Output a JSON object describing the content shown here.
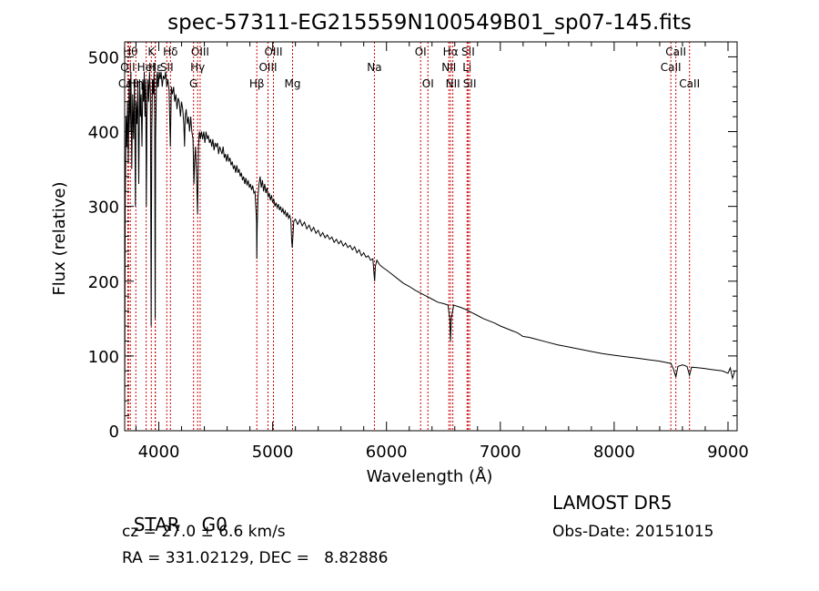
{
  "chart_data": {
    "type": "line",
    "title": "spec-57311-EG215559N100549B01_sp07-145.fits",
    "xlabel": "Wavelength (Å)",
    "ylabel": "Flux (relative)",
    "xlim": [
      3700,
      9080
    ],
    "ylim": [
      0,
      520
    ],
    "xticks": [
      4000,
      5000,
      6000,
      7000,
      8000,
      9000
    ],
    "yticks": [
      0,
      100,
      200,
      300,
      400,
      500
    ],
    "grid": false,
    "series": [
      {
        "values": [
          [
            3700,
            10
          ],
          [
            3705,
            300
          ],
          [
            3712,
            420
          ],
          [
            3718,
            380
          ],
          [
            3725,
            440
          ],
          [
            3732,
            360
          ],
          [
            3740,
            470
          ],
          [
            3748,
            400
          ],
          [
            3755,
            480
          ],
          [
            3762,
            350
          ],
          [
            3770,
            450
          ],
          [
            3778,
            390
          ],
          [
            3786,
            470
          ],
          [
            3794,
            300
          ],
          [
            3800,
            440
          ],
          [
            3808,
            410
          ],
          [
            3816,
            460
          ],
          [
            3824,
            330
          ],
          [
            3832,
            470
          ],
          [
            3838,
            420
          ],
          [
            3845,
            450
          ],
          [
            3852,
            380
          ],
          [
            3860,
            470
          ],
          [
            3866,
            440
          ],
          [
            3872,
            480
          ],
          [
            3878,
            420
          ],
          [
            3885,
            470
          ],
          [
            3890,
            300
          ],
          [
            3896,
            420
          ],
          [
            3904,
            470
          ],
          [
            3910,
            440
          ],
          [
            3918,
            480
          ],
          [
            3926,
            450
          ],
          [
            3933,
            140
          ],
          [
            3938,
            400
          ],
          [
            3945,
            470
          ],
          [
            3952,
            450
          ],
          [
            3958,
            480
          ],
          [
            3964,
            420
          ],
          [
            3968,
            150
          ],
          [
            3972,
            390
          ],
          [
            3980,
            470
          ],
          [
            3988,
            480
          ],
          [
            3996,
            460
          ],
          [
            4004,
            480
          ],
          [
            4012,
            470
          ],
          [
            4020,
            480
          ],
          [
            4030,
            460
          ],
          [
            4040,
            475
          ],
          [
            4050,
            470
          ],
          [
            4060,
            480
          ],
          [
            4070,
            460
          ],
          [
            4080,
            470
          ],
          [
            4090,
            455
          ],
          [
            4101,
            380
          ],
          [
            4110,
            460
          ],
          [
            4120,
            450
          ],
          [
            4130,
            460
          ],
          [
            4140,
            440
          ],
          [
            4150,
            450
          ],
          [
            4160,
            430
          ],
          [
            4170,
            445
          ],
          [
            4180,
            440
          ],
          [
            4190,
            420
          ],
          [
            4200,
            440
          ],
          [
            4210,
            430
          ],
          [
            4220,
            410
          ],
          [
            4226,
            380
          ],
          [
            4232,
            420
          ],
          [
            4240,
            430
          ],
          [
            4250,
            410
          ],
          [
            4260,
            420
          ],
          [
            4270,
            400
          ],
          [
            4280,
            420
          ],
          [
            4290,
            400
          ],
          [
            4300,
            390
          ],
          [
            4308,
            330
          ],
          [
            4315,
            360
          ],
          [
            4322,
            380
          ],
          [
            4330,
            350
          ],
          [
            4340,
            290
          ],
          [
            4348,
            380
          ],
          [
            4356,
            400
          ],
          [
            4365,
            390
          ],
          [
            4375,
            400
          ],
          [
            4385,
            390
          ],
          [
            4395,
            400
          ],
          [
            4405,
            385
          ],
          [
            4415,
            400
          ],
          [
            4425,
            390
          ],
          [
            4435,
            395
          ],
          [
            4445,
            385
          ],
          [
            4455,
            390
          ],
          [
            4465,
            380
          ],
          [
            4475,
            390
          ],
          [
            4485,
            375
          ],
          [
            4495,
            385
          ],
          [
            4505,
            380
          ],
          [
            4515,
            385
          ],
          [
            4525,
            370
          ],
          [
            4535,
            380
          ],
          [
            4545,
            375
          ],
          [
            4555,
            370
          ],
          [
            4565,
            380
          ],
          [
            4575,
            365
          ],
          [
            4585,
            370
          ],
          [
            4595,
            360
          ],
          [
            4605,
            370
          ],
          [
            4615,
            360
          ],
          [
            4625,
            365
          ],
          [
            4635,
            355
          ],
          [
            4645,
            360
          ],
          [
            4655,
            350
          ],
          [
            4665,
            355
          ],
          [
            4675,
            345
          ],
          [
            4685,
            355
          ],
          [
            4695,
            345
          ],
          [
            4705,
            350
          ],
          [
            4715,
            340
          ],
          [
            4725,
            345
          ],
          [
            4735,
            335
          ],
          [
            4745,
            340
          ],
          [
            4755,
            330
          ],
          [
            4765,
            338
          ],
          [
            4775,
            328
          ],
          [
            4785,
            335
          ],
          [
            4795,
            325
          ],
          [
            4805,
            330
          ],
          [
            4815,
            322
          ],
          [
            4825,
            328
          ],
          [
            4835,
            318
          ],
          [
            4845,
            320
          ],
          [
            4852,
            300
          ],
          [
            4858,
            280
          ],
          [
            4861,
            230
          ],
          [
            4864,
            270
          ],
          [
            4870,
            310
          ],
          [
            4880,
            330
          ],
          [
            4890,
            340
          ],
          [
            4900,
            325
          ],
          [
            4910,
            335
          ],
          [
            4920,
            320
          ],
          [
            4930,
            330
          ],
          [
            4940,
            318
          ],
          [
            4950,
            325
          ],
          [
            4960,
            312
          ],
          [
            4970,
            318
          ],
          [
            4980,
            308
          ],
          [
            4990,
            315
          ],
          [
            5000,
            305
          ],
          [
            5010,
            310
          ],
          [
            5020,
            300
          ],
          [
            5030,
            305
          ],
          [
            5040,
            298
          ],
          [
            5050,
            303
          ],
          [
            5060,
            295
          ],
          [
            5070,
            300
          ],
          [
            5080,
            292
          ],
          [
            5090,
            297
          ],
          [
            5100,
            290
          ],
          [
            5110,
            294
          ],
          [
            5120,
            286
          ],
          [
            5130,
            292
          ],
          [
            5140,
            284
          ],
          [
            5150,
            288
          ],
          [
            5160,
            282
          ],
          [
            5167,
            255
          ],
          [
            5172,
            245
          ],
          [
            5178,
            260
          ],
          [
            5185,
            280
          ],
          [
            5200,
            283
          ],
          [
            5220,
            276
          ],
          [
            5240,
            282
          ],
          [
            5260,
            274
          ],
          [
            5280,
            279
          ],
          [
            5300,
            270
          ],
          [
            5320,
            275
          ],
          [
            5340,
            267
          ],
          [
            5360,
            272
          ],
          [
            5380,
            264
          ],
          [
            5400,
            268
          ],
          [
            5420,
            260
          ],
          [
            5440,
            265
          ],
          [
            5460,
            258
          ],
          [
            5480,
            262
          ],
          [
            5500,
            256
          ],
          [
            5520,
            259
          ],
          [
            5540,
            252
          ],
          [
            5560,
            256
          ],
          [
            5580,
            250
          ],
          [
            5600,
            254
          ],
          [
            5620,
            247
          ],
          [
            5640,
            251
          ],
          [
            5660,
            245
          ],
          [
            5680,
            248
          ],
          [
            5700,
            242
          ],
          [
            5720,
            246
          ],
          [
            5740,
            238
          ],
          [
            5760,
            242
          ],
          [
            5780,
            234
          ],
          [
            5800,
            238
          ],
          [
            5820,
            232
          ],
          [
            5840,
            234
          ],
          [
            5860,
            228
          ],
          [
            5880,
            230
          ],
          [
            5890,
            210
          ],
          [
            5896,
            200
          ],
          [
            5902,
            220
          ],
          [
            5915,
            228
          ],
          [
            5940,
            222
          ],
          [
            5970,
            218
          ],
          [
            6000,
            215
          ],
          [
            6050,
            209
          ],
          [
            6100,
            203
          ],
          [
            6150,
            197
          ],
          [
            6200,
            193
          ],
          [
            6250,
            188
          ],
          [
            6300,
            184
          ],
          [
            6350,
            180
          ],
          [
            6400,
            176
          ],
          [
            6450,
            172
          ],
          [
            6500,
            170
          ],
          [
            6540,
            168
          ],
          [
            6556,
            150
          ],
          [
            6563,
            120
          ],
          [
            6570,
            150
          ],
          [
            6590,
            168
          ],
          [
            6650,
            165
          ],
          [
            6700,
            162
          ],
          [
            6750,
            158
          ],
          [
            6800,
            154
          ],
          [
            6850,
            150
          ],
          [
            6900,
            147
          ],
          [
            6950,
            144
          ],
          [
            7000,
            140
          ],
          [
            7050,
            137
          ],
          [
            7100,
            134
          ],
          [
            7150,
            131
          ],
          [
            7200,
            126
          ],
          [
            7250,
            125
          ],
          [
            7300,
            123
          ],
          [
            7400,
            119
          ],
          [
            7500,
            115
          ],
          [
            7600,
            112
          ],
          [
            7700,
            109
          ],
          [
            7800,
            106
          ],
          [
            7900,
            103
          ],
          [
            8000,
            101
          ],
          [
            8100,
            99
          ],
          [
            8200,
            97
          ],
          [
            8300,
            95
          ],
          [
            8400,
            93
          ],
          [
            8498,
            90
          ],
          [
            8520,
            83
          ],
          [
            8542,
            72
          ],
          [
            8560,
            86
          ],
          [
            8600,
            88
          ],
          [
            8640,
            86
          ],
          [
            8662,
            74
          ],
          [
            8680,
            85
          ],
          [
            8750,
            84
          ],
          [
            8800,
            83
          ],
          [
            8850,
            82
          ],
          [
            8900,
            81
          ],
          [
            8950,
            80
          ],
          [
            9000,
            77
          ],
          [
            9020,
            84
          ],
          [
            9040,
            70
          ],
          [
            9060,
            80
          ]
        ]
      }
    ],
    "line_marks": [
      {
        "label": "OII",
        "x": 3727,
        "row": 1
      },
      {
        "label": "CaII",
        "x": 3734,
        "row": 2
      },
      {
        "label": "Hθ",
        "x": 3750,
        "row": 0
      },
      {
        "label": "Hη",
        "x": 3798,
        "row": 2
      },
      {
        "label": "HeI",
        "x": 3889,
        "row": 1
      },
      {
        "label": "K",
        "x": 3934,
        "row": 0
      },
      {
        "label": "H",
        "x": 3968,
        "row": 2
      },
      {
        "label": "Hε",
        "x": 3970,
        "row": 1
      },
      {
        "label": "Hδ",
        "x": 4102,
        "row": 0
      },
      {
        "label": "SII",
        "x": 4070,
        "row": 1
      },
      {
        "label": "OIII",
        "x": 4363,
        "row": 0
      },
      {
        "label": "Hγ",
        "x": 4341,
        "row": 1
      },
      {
        "label": "G",
        "x": 4305,
        "row": 2
      },
      {
        "label": "Hβ",
        "x": 4861,
        "row": 2
      },
      {
        "label": "OIII",
        "x": 4959,
        "row": 1
      },
      {
        "label": "OIII",
        "x": 5007,
        "row": 0
      },
      {
        "label": "Mg",
        "x": 5175,
        "row": 2
      },
      {
        "label": "Na",
        "x": 5894,
        "row": 1
      },
      {
        "label": "OI",
        "x": 6300,
        "row": 0
      },
      {
        "label": "OI",
        "x": 6364,
        "row": 2
      },
      {
        "label": "NII",
        "x": 6548,
        "row": 1
      },
      {
        "label": "Hα",
        "x": 6563,
        "row": 0
      },
      {
        "label": "NII",
        "x": 6583,
        "row": 2
      },
      {
        "label": "SII",
        "x": 6717,
        "row": 0
      },
      {
        "label": "Li",
        "x": 6708,
        "row": 1
      },
      {
        "label": "SII",
        "x": 6731,
        "row": 2
      },
      {
        "label": "CaII",
        "x": 8498,
        "row": 1
      },
      {
        "label": "CaII",
        "x": 8542,
        "row": 0
      },
      {
        "label": "CaII",
        "x": 8662,
        "row": 2
      }
    ],
    "line_color": "#cc0000",
    "spectrum_color": "#000000"
  },
  "info": {
    "class_label": "STAR",
    "subclass": "G0",
    "survey": "LAMOST DR5",
    "cz": "cz = 27.0 ± 6.6 km/s",
    "obs_date": "Obs-Date: 20151015",
    "coords": "RA = 331.02129, DEC =   8.82886"
  }
}
